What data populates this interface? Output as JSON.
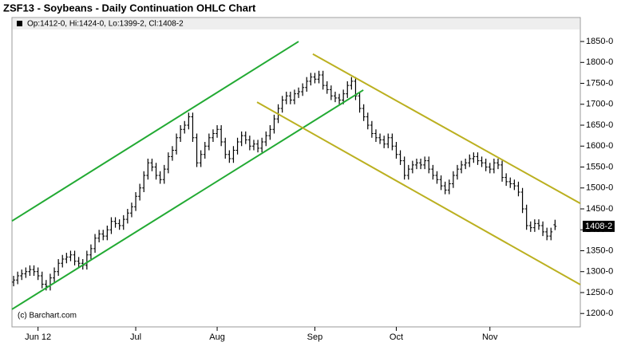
{
  "chart_data": {
    "type": "ohlc",
    "title": "ZSF13 - Soybeans - Daily Continuation OHLC Chart",
    "legend_text": "Op:1412-0, Hi:1424-0, Lo:1399-2, Cl:1408-2",
    "watermark": "(c) Barchart.com",
    "color": "#000000",
    "last_price": 1408.25,
    "last_price_label": "1408-2",
    "open": [
      1275,
      1280,
      1290,
      1295,
      1300,
      1305,
      1300,
      1290,
      1270,
      1265,
      1285,
      1300,
      1320,
      1330,
      1335,
      1340,
      1325,
      1320,
      1315,
      1340,
      1355,
      1380,
      1390,
      1385,
      1400,
      1420,
      1415,
      1410,
      1425,
      1440,
      1455,
      1480,
      1500,
      1530,
      1560,
      1550,
      1530,
      1520,
      1545,
      1575,
      1590,
      1620,
      1640,
      1650,
      1670,
      1620,
      1560,
      1580,
      1600,
      1620,
      1630,
      1640,
      1610,
      1580,
      1570,
      1590,
      1610,
      1625,
      1615,
      1600,
      1605,
      1595,
      1610,
      1625,
      1640,
      1665,
      1690,
      1710,
      1720,
      1710,
      1725,
      1730,
      1740,
      1755,
      1765,
      1760,
      1770,
      1745,
      1735,
      1720,
      1715,
      1710,
      1725,
      1745,
      1755,
      1720,
      1690,
      1670,
      1650,
      1630,
      1620,
      1615,
      1605,
      1620,
      1600,
      1580,
      1565,
      1530,
      1545,
      1555,
      1560,
      1555,
      1565,
      1545,
      1530,
      1520,
      1505,
      1495,
      1510,
      1530,
      1545,
      1555,
      1560,
      1570,
      1575,
      1565,
      1560,
      1550,
      1545,
      1560,
      1555,
      1525,
      1515,
      1510,
      1505,
      1490,
      1450,
      1410,
      1405,
      1415,
      1410,
      1395,
      1385,
      1412
    ],
    "high": [
      1290,
      1300,
      1305,
      1310,
      1315,
      1315,
      1310,
      1300,
      1280,
      1295,
      1310,
      1330,
      1340,
      1345,
      1350,
      1350,
      1335,
      1330,
      1350,
      1365,
      1390,
      1400,
      1400,
      1410,
      1430,
      1430,
      1425,
      1435,
      1450,
      1465,
      1490,
      1510,
      1540,
      1570,
      1570,
      1560,
      1540,
      1555,
      1585,
      1600,
      1630,
      1650,
      1660,
      1680,
      1680,
      1630,
      1590,
      1610,
      1630,
      1640,
      1650,
      1650,
      1620,
      1590,
      1600,
      1620,
      1635,
      1635,
      1625,
      1615,
      1615,
      1620,
      1635,
      1650,
      1675,
      1700,
      1720,
      1730,
      1730,
      1735,
      1740,
      1750,
      1765,
      1775,
      1775,
      1780,
      1780,
      1755,
      1745,
      1730,
      1725,
      1735,
      1755,
      1765,
      1765,
      1730,
      1700,
      1680,
      1660,
      1640,
      1630,
      1625,
      1630,
      1630,
      1610,
      1590,
      1575,
      1555,
      1565,
      1570,
      1570,
      1575,
      1575,
      1555,
      1540,
      1530,
      1515,
      1520,
      1540,
      1555,
      1565,
      1570,
      1580,
      1585,
      1585,
      1575,
      1570,
      1560,
      1570,
      1570,
      1565,
      1535,
      1525,
      1520,
      1515,
      1500,
      1460,
      1420,
      1425,
      1425,
      1420,
      1405,
      1405,
      1424
    ],
    "low": [
      1265,
      1270,
      1280,
      1285,
      1290,
      1290,
      1280,
      1260,
      1255,
      1255,
      1275,
      1290,
      1310,
      1320,
      1325,
      1315,
      1310,
      1305,
      1305,
      1330,
      1345,
      1370,
      1375,
      1375,
      1390,
      1405,
      1400,
      1400,
      1415,
      1430,
      1445,
      1470,
      1490,
      1520,
      1540,
      1520,
      1510,
      1510,
      1535,
      1565,
      1580,
      1610,
      1630,
      1640,
      1610,
      1550,
      1550,
      1570,
      1590,
      1610,
      1620,
      1600,
      1570,
      1560,
      1560,
      1580,
      1600,
      1605,
      1590,
      1590,
      1585,
      1585,
      1600,
      1615,
      1630,
      1655,
      1680,
      1700,
      1700,
      1700,
      1715,
      1720,
      1730,
      1745,
      1750,
      1750,
      1735,
      1725,
      1710,
      1705,
      1700,
      1700,
      1715,
      1735,
      1710,
      1680,
      1660,
      1640,
      1620,
      1610,
      1605,
      1595,
      1595,
      1590,
      1570,
      1555,
      1520,
      1520,
      1535,
      1545,
      1545,
      1545,
      1535,
      1520,
      1510,
      1495,
      1485,
      1485,
      1500,
      1520,
      1535,
      1545,
      1550,
      1560,
      1555,
      1550,
      1540,
      1535,
      1535,
      1545,
      1515,
      1505,
      1500,
      1495,
      1480,
      1440,
      1400,
      1395,
      1395,
      1400,
      1385,
      1375,
      1375,
      1399.25
    ],
    "close": [
      1280,
      1290,
      1295,
      1300,
      1305,
      1300,
      1290,
      1270,
      1265,
      1285,
      1300,
      1320,
      1330,
      1335,
      1340,
      1325,
      1320,
      1315,
      1340,
      1355,
      1380,
      1390,
      1385,
      1400,
      1420,
      1415,
      1410,
      1425,
      1440,
      1455,
      1480,
      1500,
      1530,
      1560,
      1550,
      1530,
      1520,
      1545,
      1575,
      1590,
      1620,
      1640,
      1650,
      1670,
      1620,
      1560,
      1580,
      1600,
      1620,
      1630,
      1640,
      1610,
      1580,
      1570,
      1590,
      1610,
      1625,
      1615,
      1600,
      1605,
      1595,
      1610,
      1625,
      1640,
      1665,
      1690,
      1710,
      1720,
      1710,
      1725,
      1730,
      1740,
      1755,
      1765,
      1760,
      1770,
      1745,
      1735,
      1720,
      1715,
      1710,
      1725,
      1745,
      1755,
      1720,
      1690,
      1670,
      1650,
      1630,
      1620,
      1615,
      1605,
      1620,
      1600,
      1580,
      1565,
      1530,
      1545,
      1555,
      1560,
      1555,
      1565,
      1545,
      1530,
      1520,
      1505,
      1495,
      1510,
      1530,
      1545,
      1555,
      1560,
      1570,
      1575,
      1565,
      1560,
      1550,
      1545,
      1560,
      1555,
      1525,
      1515,
      1510,
      1505,
      1490,
      1450,
      1410,
      1405,
      1415,
      1410,
      1395,
      1385,
      1395,
      1408.25
    ],
    "xlim": [
      -0.4,
      139.2
    ],
    "xticks": [
      {
        "value": 6,
        "label": "Jun 12"
      },
      {
        "value": 30,
        "label": "Jul"
      },
      {
        "value": 50,
        "label": "Aug"
      },
      {
        "value": 74,
        "label": "Sep"
      },
      {
        "value": 94,
        "label": "Oct"
      },
      {
        "value": 117,
        "label": "Nov"
      }
    ],
    "ylim": [
      1168,
      1892
    ],
    "yticks": [
      {
        "value": 1200,
        "label": "1200-0"
      },
      {
        "value": 1250,
        "label": "1250-0"
      },
      {
        "value": 1300,
        "label": "1300-0"
      },
      {
        "value": 1350,
        "label": "1350-0"
      },
      {
        "value": 1400,
        "label": "1400-0"
      },
      {
        "value": 1450,
        "label": "1450-0"
      },
      {
        "value": 1500,
        "label": "1500-0"
      },
      {
        "value": 1550,
        "label": "1550-0"
      },
      {
        "value": 1600,
        "label": "1600-0"
      },
      {
        "value": 1650,
        "label": "1650-0"
      },
      {
        "value": 1700,
        "label": "1700-0"
      },
      {
        "value": 1750,
        "label": "1750-0"
      },
      {
        "value": 1800,
        "label": "1800-0"
      },
      {
        "value": 1850,
        "label": "1850-0"
      }
    ],
    "trendlines": [
      {
        "color": "#22aa33",
        "points": [
          [
            -0.4,
            1421
          ],
          [
            70,
            1850
          ]
        ]
      },
      {
        "color": "#22aa33",
        "points": [
          [
            -0.4,
            1210
          ],
          [
            85.9,
            1734
          ]
        ]
      },
      {
        "color": "#bbb020",
        "points": [
          [
            73.5,
            1820
          ],
          [
            139.2,
            1463
          ]
        ]
      },
      {
        "color": "#bbb020",
        "points": [
          [
            59.8,
            1705
          ],
          [
            139.2,
            1269
          ]
        ]
      }
    ]
  }
}
